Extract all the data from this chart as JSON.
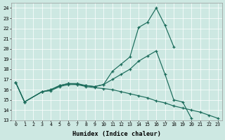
{
  "background_color": "#cde8e2",
  "grid_color": "#ffffff",
  "line_color": "#1a6b5a",
  "xlabel": "Humidex (Indice chaleur)",
  "xlim": [
    -0.5,
    23.5
  ],
  "ylim": [
    13,
    24.5
  ],
  "yticks": [
    13,
    14,
    15,
    16,
    17,
    18,
    19,
    20,
    21,
    22,
    23,
    24
  ],
  "xticks": [
    0,
    1,
    2,
    3,
    4,
    5,
    6,
    7,
    8,
    9,
    10,
    11,
    12,
    13,
    14,
    15,
    16,
    17,
    18,
    19,
    20,
    21,
    22,
    23
  ],
  "line_peak_x": [
    0,
    1,
    3,
    4,
    5,
    6,
    7,
    8,
    9,
    10,
    11,
    12,
    13,
    14,
    15,
    16,
    17,
    18
  ],
  "line_peak_y": [
    16.7,
    14.8,
    15.8,
    16.0,
    16.4,
    16.6,
    16.6,
    16.4,
    16.3,
    16.5,
    17.8,
    18.5,
    19.2,
    22.1,
    22.6,
    24.0,
    22.3,
    20.2
  ],
  "line_mid_x": [
    0,
    1,
    3,
    4,
    5,
    6,
    7,
    8,
    9,
    10,
    11,
    12,
    13,
    14,
    15,
    16,
    17,
    18,
    19,
    20,
    21,
    22
  ],
  "line_mid_y": [
    16.7,
    14.8,
    15.8,
    16.0,
    16.4,
    16.6,
    16.5,
    16.4,
    16.3,
    16.5,
    17.0,
    17.5,
    18.0,
    18.8,
    19.3,
    19.8,
    17.5,
    15.0,
    14.8,
    13.2,
    null,
    null
  ],
  "line_flat_x": [
    0,
    1,
    3,
    4,
    5,
    6,
    7,
    8,
    9,
    10,
    11,
    12,
    13,
    14,
    15,
    16,
    17,
    18,
    19,
    20,
    21,
    22,
    23
  ],
  "line_flat_y": [
    16.7,
    14.8,
    15.8,
    15.9,
    16.3,
    16.5,
    16.5,
    16.3,
    16.2,
    16.1,
    16.0,
    15.8,
    15.6,
    15.4,
    15.2,
    14.9,
    14.7,
    14.4,
    14.2,
    14.0,
    13.8,
    13.5,
    13.2
  ]
}
